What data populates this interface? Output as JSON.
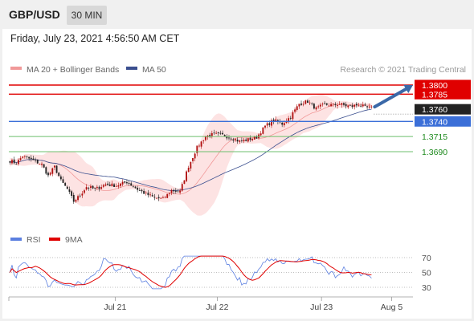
{
  "header": {
    "pair": "GBP/USD",
    "interval": "30 MIN"
  },
  "timestamp": "Friday, July 23, 2021 4:56:50 AM CET",
  "credit": "Research © 2021 Trading Central",
  "colors": {
    "resistance": "#e00000",
    "pivot": "#3b6fd8",
    "support": "#6cbf6c",
    "ma50": "#3b4f8f",
    "bollinger": "#fde0e0",
    "ma20": "#f19999",
    "rsi": "#5b7fe0",
    "rsi_ma": "#e00000",
    "arrow": "#3b69a8",
    "price_tag": "#222222"
  },
  "chart_data": [
    {
      "type": "candlestick",
      "legend": [
        {
          "name": "MA 20 + Bollinger Bands",
          "color": "#f19999"
        },
        {
          "name": "MA 50",
          "color": "#3b4f8f"
        }
      ],
      "y_scale": {
        "price_a": 1.38,
        "price_b": 1.369,
        "rows_per_unit": 7909
      },
      "levels": [
        {
          "value": 1.38,
          "label": "1.3800",
          "kind": "resistance"
        },
        {
          "value": 1.3785,
          "label": "1.3785",
          "kind": "resistance"
        },
        {
          "value": 1.374,
          "label": "1.3740",
          "kind": "pivot"
        },
        {
          "value": 1.3715,
          "label": "1.3715",
          "kind": "support"
        },
        {
          "value": 1.369,
          "label": "1.3690",
          "kind": "support"
        }
      ],
      "last_price": {
        "value": 1.376,
        "label": "1.3760"
      },
      "target_arrow": {
        "from": 1.3764,
        "to": 1.38
      },
      "price_path": [
        [
          0,
          1.3675
        ],
        [
          3,
          1.3671
        ],
        [
          6,
          1.3683
        ],
        [
          10,
          1.3677
        ],
        [
          15,
          1.3669
        ],
        [
          18,
          1.365
        ],
        [
          21,
          1.3665
        ],
        [
          24,
          1.3642
        ],
        [
          27,
          1.3628
        ],
        [
          30,
          1.3608
        ],
        [
          33,
          1.3618
        ],
        [
          36,
          1.3632
        ],
        [
          40,
          1.3628
        ],
        [
          45,
          1.3636
        ],
        [
          50,
          1.3634
        ],
        [
          55,
          1.364
        ],
        [
          60,
          1.3628
        ],
        [
          64,
          1.362
        ],
        [
          68,
          1.3614
        ],
        [
          72,
          1.3612
        ],
        [
          76,
          1.3626
        ],
        [
          80,
          1.3624
        ],
        [
          84,
          1.3666
        ],
        [
          88,
          1.3697
        ],
        [
          92,
          1.3715
        ],
        [
          96,
          1.3719
        ],
        [
          100,
          1.3717
        ],
        [
          104,
          1.3713
        ],
        [
          108,
          1.3707
        ],
        [
          112,
          1.371
        ],
        [
          116,
          1.3714
        ],
        [
          120,
          1.3732
        ],
        [
          124,
          1.3742
        ],
        [
          128,
          1.3736
        ],
        [
          132,
          1.3748
        ],
        [
          136,
          1.3769
        ],
        [
          140,
          1.3773
        ],
        [
          144,
          1.3761
        ],
        [
          148,
          1.3768
        ],
        [
          152,
          1.3767
        ],
        [
          155,
          1.3769
        ],
        [
          158,
          1.3766
        ],
        [
          161,
          1.3765
        ],
        [
          164,
          1.3768
        ],
        [
          167,
          1.3763
        ],
        [
          170,
          1.3762
        ]
      ],
      "x_axis": {
        "total_bars": 190,
        "ticks": [
          {
            "label": "Jul 21",
            "bar": 50
          },
          {
            "label": "Jul 22",
            "bar": 98
          },
          {
            "label": "Jul 23",
            "bar": 147
          },
          {
            "label": "Aug 5",
            "bar": 180
          }
        ]
      }
    },
    {
      "type": "line",
      "legend": [
        {
          "name": "RSI",
          "color": "#5b7fe0"
        },
        {
          "name": "9MA",
          "color": "#e00000"
        }
      ],
      "ylim": [
        30,
        70
      ],
      "ticks": [
        70,
        50,
        30
      ]
    }
  ]
}
